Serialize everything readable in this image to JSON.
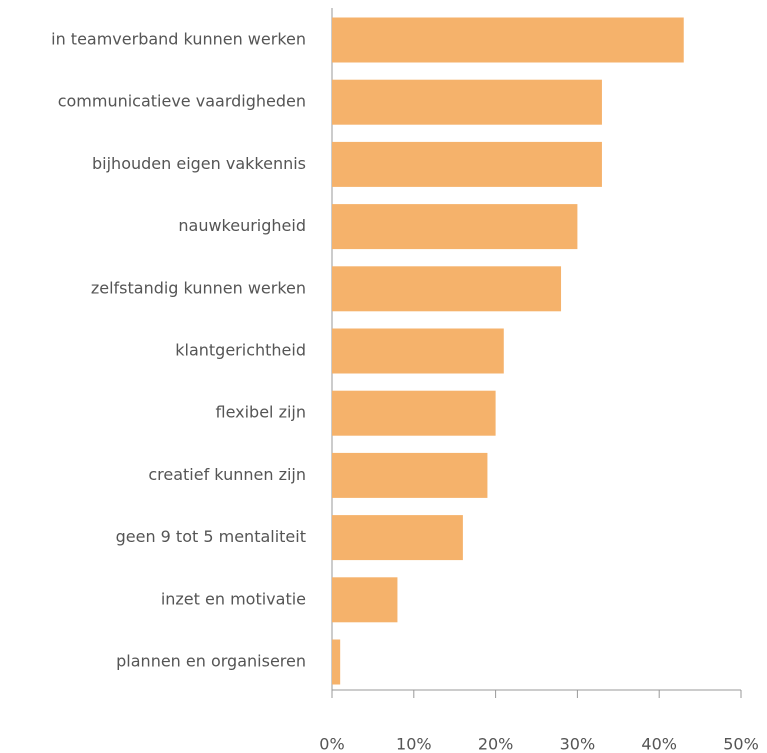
{
  "chart_data": {
    "type": "bar",
    "orientation": "horizontal",
    "categories": [
      "in teamverband kunnen werken",
      "communicatieve vaardigheden",
      "bijhouden eigen vakkennis",
      "nauwkeurigheid",
      "zelfstandig kunnen werken",
      "klantgerichtheid",
      "flexibel zijn",
      "creatief kunnen zijn",
      "geen 9 tot 5 mentaliteit",
      "inzet en motivatie",
      "plannen en organiseren"
    ],
    "values": [
      43,
      33,
      33,
      30,
      28,
      21,
      20,
      19,
      16,
      8,
      1
    ],
    "color": "#f5b26b",
    "xlim": [
      0,
      50
    ],
    "xticks": [
      {
        "value": 0,
        "label": "0%"
      },
      {
        "value": 10,
        "label": "10%"
      },
      {
        "value": 20,
        "label": "20%"
      },
      {
        "value": 30,
        "label": "30%"
      },
      {
        "value": 40,
        "label": "40%"
      },
      {
        "value": 50,
        "label": "50%"
      }
    ],
    "grid": false
  }
}
